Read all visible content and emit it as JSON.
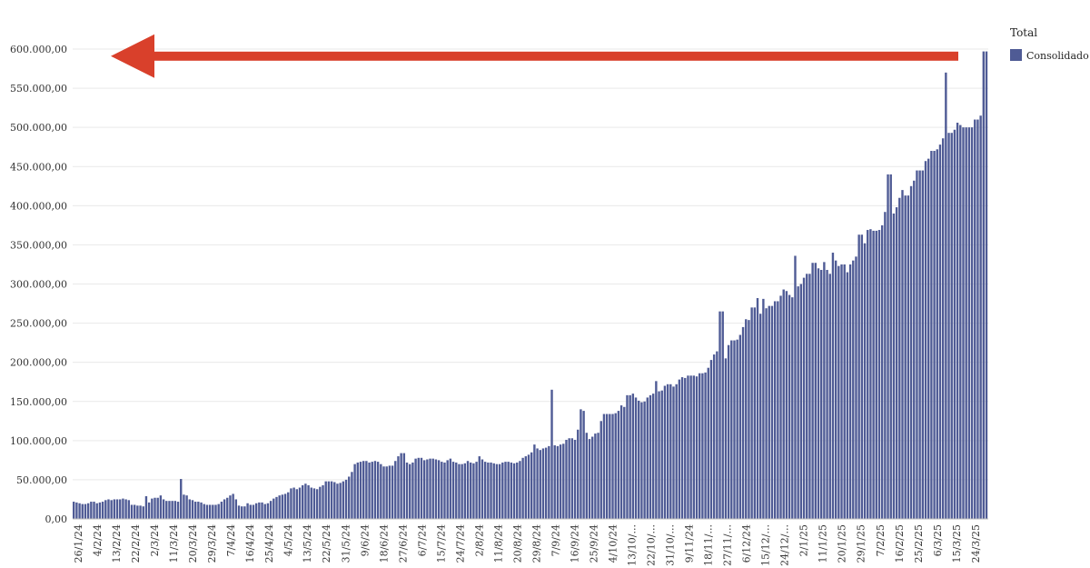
{
  "chart_data": {
    "type": "bar",
    "title": "",
    "xlabel": "",
    "ylabel": "",
    "ylim": [
      0,
      600000
    ],
    "yticks": [
      "0,00",
      "50.000,00",
      "100.000,00",
      "150.000,00",
      "200.000,00",
      "250.000,00",
      "300.000,00",
      "350.000,00",
      "400.000,00",
      "450.000,00",
      "500.000,00",
      "550.000,00",
      "600.000,00"
    ],
    "xtick_labels": [
      "26/1/24",
      "4/2/24",
      "13/2/24",
      "22/2/24",
      "2/3/24",
      "11/3/24",
      "20/3/24",
      "29/3/24",
      "7/4/24",
      "16/4/24",
      "25/4/24",
      "4/5/24",
      "13/5/24",
      "22/5/24",
      "31/5/24",
      "9/6/24",
      "18/6/24",
      "27/6/24",
      "6/7/24",
      "15/7/24",
      "24/7/24",
      "2/8/24",
      "11/8/24",
      "20/8/24",
      "29/8/24",
      "7/9/24",
      "16/9/24",
      "25/9/24",
      "4/10/24",
      "13/10/...",
      "22/10/...",
      "31/10/...",
      "9/11/24",
      "18/11/...",
      "27/11/...",
      "6/12/24",
      "15/12/...",
      "24/12/...",
      "2/1/25",
      "11/1/25",
      "20/1/25",
      "29/1/25",
      "7/2/25",
      "16/2/25",
      "25/2/25",
      "6/3/25",
      "15/3/25",
      "24/3/25"
    ],
    "legend": {
      "title": "Total",
      "position": "top-right"
    },
    "grid": true,
    "series": [
      {
        "name": "Consolidado",
        "color": "#4f5b95",
        "values": [
          22000,
          21000,
          20000,
          19000,
          19000,
          20000,
          22000,
          22000,
          20000,
          21000,
          22000,
          24000,
          25000,
          24000,
          25000,
          25000,
          25000,
          26000,
          25000,
          24000,
          18000,
          18000,
          17000,
          17000,
          16000,
          29000,
          21000,
          26000,
          27000,
          27000,
          30000,
          25000,
          23000,
          23000,
          23000,
          23000,
          22000,
          51000,
          31000,
          30000,
          25000,
          24000,
          22000,
          22000,
          21000,
          19000,
          18000,
          18000,
          18000,
          18000,
          19000,
          22000,
          25000,
          27000,
          30000,
          32000,
          25000,
          17000,
          16000,
          16000,
          20000,
          18000,
          18000,
          20000,
          21000,
          21000,
          19000,
          20000,
          23000,
          26000,
          28000,
          30000,
          31000,
          32000,
          34000,
          39000,
          40000,
          38000,
          40000,
          43000,
          45000,
          43000,
          40000,
          39000,
          38000,
          41000,
          43000,
          48000,
          48000,
          48000,
          47000,
          45000,
          46000,
          48000,
          50000,
          54000,
          60000,
          70000,
          72000,
          73000,
          74000,
          74000,
          72000,
          73000,
          74000,
          73000,
          70000,
          67000,
          67000,
          68000,
          68000,
          74000,
          80000,
          84000,
          84000,
          72000,
          70000,
          72000,
          77000,
          78000,
          78000,
          75000,
          76000,
          77000,
          77000,
          76000,
          75000,
          73000,
          72000,
          75000,
          77000,
          73000,
          72000,
          70000,
          70000,
          71000,
          74000,
          72000,
          71000,
          73000,
          80000,
          76000,
          73000,
          72000,
          72000,
          71000,
          70000,
          70000,
          72000,
          73000,
          73000,
          72000,
          71000,
          72000,
          74000,
          78000,
          80000,
          82000,
          85000,
          95000,
          90000,
          88000,
          90000,
          91000,
          93000,
          165000,
          94000,
          93000,
          95000,
          96000,
          101000,
          103000,
          103000,
          101000,
          114000,
          140000,
          138000,
          110000,
          102000,
          105000,
          109000,
          110000,
          125000,
          134000,
          134000,
          134000,
          134000,
          135000,
          138000,
          145000,
          143000,
          158000,
          158000,
          160000,
          155000,
          151000,
          149000,
          150000,
          155000,
          158000,
          160000,
          176000,
          163000,
          164000,
          170000,
          172000,
          172000,
          169000,
          172000,
          178000,
          181000,
          180000,
          183000,
          183000,
          183000,
          182000,
          186000,
          186000,
          187000,
          193000,
          203000,
          210000,
          214000,
          265000,
          265000,
          205000,
          222000,
          228000,
          228000,
          229000,
          235000,
          245000,
          255000,
          254000,
          270000,
          270000,
          282000,
          262000,
          281000,
          269000,
          272000,
          272000,
          278000,
          278000,
          285000,
          293000,
          291000,
          286000,
          283000,
          336000,
          297000,
          300000,
          308000,
          313000,
          313000,
          327000,
          327000,
          320000,
          318000,
          328000,
          318000,
          313000,
          340000,
          330000,
          323000,
          325000,
          325000,
          315000,
          325000,
          330000,
          335000,
          363000,
          363000,
          352000,
          369000,
          370000,
          368000,
          368000,
          369000,
          375000,
          392000,
          440000,
          440000,
          390000,
          398000,
          410000,
          420000,
          413000,
          413000,
          425000,
          432000,
          445000,
          445000,
          445000,
          457000,
          460000,
          470000,
          470000,
          472000,
          478000,
          486000,
          570000,
          493000,
          493000,
          497000,
          506000,
          503000,
          500000,
          500000,
          500000,
          500000,
          510000,
          510000,
          515000,
          597000,
          597000
        ]
      }
    ],
    "annotations": [
      {
        "type": "arrow",
        "color": "#d9402b",
        "direction": "left",
        "at_value": 591000
      }
    ]
  }
}
